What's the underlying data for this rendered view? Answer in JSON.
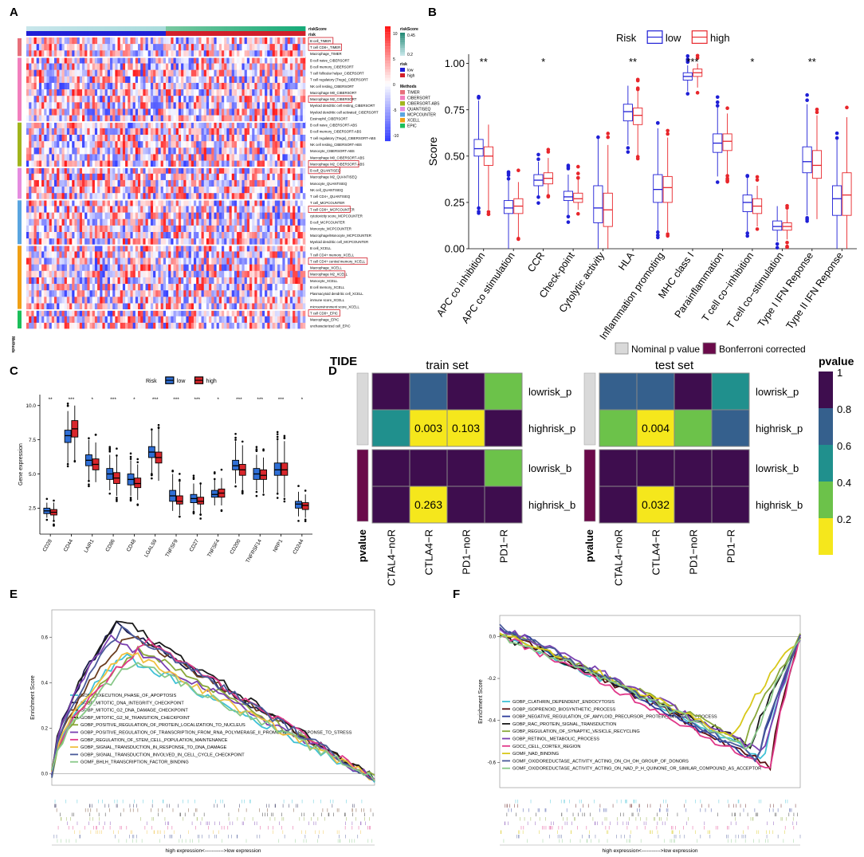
{
  "panels": {
    "A": "A",
    "B": "B",
    "C": "C",
    "D": "D",
    "E": "E",
    "F": "F"
  },
  "colors": {
    "low": "#1f1fd6",
    "high": "#e8262b",
    "c_low": "#2f6fd6",
    "c_high": "#d8262b",
    "timer": "#e76f7b",
    "cibersort": "#f27fbd",
    "cibersortabs": "#a1b41c",
    "quantiseq": "#e58ce0",
    "mcpcounter": "#5aa5e0",
    "xcell": "#f0a015",
    "epic": "#1bbf5a",
    "pv1": "#3e0d4e",
    "pv08": "#35608d",
    "pv06": "#20908d",
    "pv04": "#6cc24a",
    "pv02": "#f5e71c"
  },
  "panel_a": {
    "risk_score_label": "riskScore",
    "risk_label": "risk",
    "legend": {
      "scale_ticks": [
        "10",
        "5",
        "0",
        "-5",
        "-10"
      ],
      "riskscore_title": "riskScore",
      "riskscore_ticks": [
        "0.45",
        "0.2"
      ],
      "risk_title": "risk",
      "risk_items": [
        "low",
        "high"
      ],
      "methods_title": "Methods",
      "methods": [
        "TIMER",
        "CIBERSORT",
        "CIBERSORT-ABS",
        "QUANTISEQ",
        "MCPCOUNTER",
        "XCELL",
        "EPIC"
      ]
    },
    "methods_axis": "Methods",
    "rows": [
      "B cell_TIMER",
      "T cell CD8+_TIMER",
      "Macrophage_TIMER",
      "B cell naive_CIBERSORT",
      "B cell memory_CIBERSORT",
      "T cell follicular helper_CIBERSORT",
      "T cell regulatory (Tregs)_CIBERSORT",
      "NK cell resting_CIBERSORT",
      "Macrophage M0_CIBERSORT",
      "Macrophage M2_CIBERSORT",
      "Myeloid dendritic cell resting_CIBERSORT",
      "Myeloid dendritic cell activated_CIBERSORT",
      "Eosinophil_CIBERSORT",
      "B cell naive_CIBERSORT-ABS",
      "B cell memory_CIBERSORT-ABS",
      "T cell regulatory (Tregs)_CIBERSORT-ABS",
      "NK cell resting_CIBERSORT-ABS",
      "Monocyte_CIBERSORT-ABS",
      "Macrophage M0_CIBERSORT-ABS",
      "Macrophage M2_CIBERSORT-ABS",
      "B cell_QUANTISEQ",
      "Macrophage M2_QUANTISEQ",
      "Monocyte_QUANTISEQ",
      "NK cell_QUANTISEQ",
      "T cell CD4+_QUANTISEQ",
      "T cell_MCPCOUNTER",
      "T cell CD8+_MCPCOUNTER",
      "cytotoxicity score_MCPCOUNTER",
      "B cell_MCPCOUNTER",
      "Monocyte_MCPCOUNTER",
      "Macrophage/Monocyte_MCPCOUNTER",
      "Myeloid dendritic cell_MCPCOUNTER",
      "B cell_XCELL",
      "T cell CD4+ memory_XCELL",
      "T cell CD4+ central memory_XCELL",
      "Macrophage_XCELL",
      "Macrophage M2_XCELL",
      "Monocyte_XCELL",
      "B cell memory_XCELL",
      "Plasmacytoid dendritic cell_XCELL",
      "immune score_XCELL",
      "microenvironment score_XCELL",
      "T cell CD8+_EPIC",
      "Macrophage_EPIC",
      "uncharacterized cell_EPIC"
    ]
  },
  "chart_data": [
    {
      "panel": "B",
      "type": "box",
      "legend_title": "Risk",
      "legend_items": [
        "low",
        "high"
      ],
      "ylabel": "Score",
      "ylim": [
        0,
        1.05
      ],
      "yticks": [
        "0.00",
        "0.25",
        "0.50",
        "0.75",
        "1.00"
      ],
      "categories": [
        "APC co inhibition",
        "APC co stimulation",
        "CCR",
        "Check-point",
        "Cytolytic activity",
        "HLA",
        "Inflammation promoting",
        "MHC class I",
        "Parainflammation",
        "T cell co−inhibition",
        "T cell co−stimulation",
        "Type I IFN Reponse",
        "Type II IFN Reponse"
      ],
      "significance": [
        "**",
        "",
        "*",
        "",
        "",
        "**",
        "",
        "***",
        "",
        "*",
        "",
        "**",
        ""
      ],
      "series": [
        {
          "name": "low",
          "box": [
            [
              0.22,
              0.5,
              0.54,
              0.59,
              0.8
            ],
            [
              0.0,
              0.19,
              0.22,
              0.26,
              0.37
            ],
            [
              0.28,
              0.34,
              0.37,
              0.4,
              0.47
            ],
            [
              0.18,
              0.26,
              0.28,
              0.31,
              0.4
            ],
            [
              0.0,
              0.14,
              0.22,
              0.34,
              0.6
            ],
            [
              0.56,
              0.69,
              0.74,
              0.78,
              0.88
            ],
            [
              0.09,
              0.25,
              0.32,
              0.4,
              0.65
            ],
            [
              0.85,
              0.91,
              0.93,
              0.95,
              0.99
            ],
            [
              0.39,
              0.52,
              0.57,
              0.62,
              0.77
            ],
            [
              0.09,
              0.2,
              0.25,
              0.29,
              0.39
            ],
            [
              0.04,
              0.1,
              0.12,
              0.15,
              0.23
            ],
            [
              0.18,
              0.41,
              0.47,
              0.55,
              0.78
            ],
            [
              0.0,
              0.18,
              0.27,
              0.34,
              0.59
            ]
          ]
        },
        {
          "name": "high",
          "box": [
            [
              0.21,
              0.45,
              0.5,
              0.55,
              0.67
            ],
            [
              0.06,
              0.19,
              0.23,
              0.27,
              0.36
            ],
            [
              0.29,
              0.35,
              0.38,
              0.41,
              0.49
            ],
            [
              0.21,
              0.25,
              0.27,
              0.3,
              0.38
            ],
            [
              0.0,
              0.12,
              0.21,
              0.3,
              0.56
            ],
            [
              0.5,
              0.67,
              0.72,
              0.76,
              0.86
            ],
            [
              0.09,
              0.25,
              0.33,
              0.39,
              0.6
            ],
            [
              0.87,
              0.93,
              0.95,
              0.97,
              1.0
            ],
            [
              0.4,
              0.53,
              0.58,
              0.62,
              0.73
            ],
            [
              0.12,
              0.19,
              0.23,
              0.27,
              0.34
            ],
            [
              0.05,
              0.1,
              0.12,
              0.14,
              0.21
            ],
            [
              0.16,
              0.38,
              0.45,
              0.53,
              0.72
            ],
            [
              0.0,
              0.18,
              0.29,
              0.41,
              0.71
            ]
          ]
        }
      ]
    },
    {
      "panel": "C",
      "type": "box",
      "legend_title": "Risk",
      "legend_items": [
        "low",
        "high"
      ],
      "ylabel": "Gene expression",
      "ylim": [
        0.6,
        10.8
      ],
      "yticks": [
        "2.5",
        "5.0",
        "7.5",
        "10.0"
      ],
      "categories": [
        "CD28",
        "CD44",
        "LAIR1",
        "CD86",
        "CD48",
        "LGALS9",
        "TNFSF9",
        "CD27",
        "TNFSF4",
        "CD200",
        "TNFRSF14",
        "NRP1",
        "CD244"
      ],
      "significance": [
        "**",
        "***",
        "*",
        "***",
        "*",
        "***",
        "***",
        "***",
        "*",
        "***",
        "***",
        "***",
        "*"
      ],
      "series": [
        {
          "name": "low",
          "box": [
            [
              1.8,
              2.1,
              2.3,
              2.5,
              2.9
            ],
            [
              5.8,
              7.3,
              7.8,
              8.2,
              9.6
            ],
            [
              4.5,
              5.6,
              6.0,
              6.4,
              7.5
            ],
            [
              3.8,
              4.6,
              5.0,
              5.4,
              6.4
            ],
            [
              3.4,
              4.2,
              4.6,
              5.0,
              6.0
            ],
            [
              5.0,
              6.2,
              6.6,
              7.0,
              8.2
            ],
            [
              2.3,
              3.0,
              3.4,
              3.8,
              5.0
            ],
            [
              2.3,
              2.9,
              3.2,
              3.5,
              4.3
            ],
            [
              2.7,
              3.3,
              3.5,
              3.8,
              4.6
            ],
            [
              4.3,
              5.3,
              5.6,
              6.0,
              7.4
            ],
            [
              3.8,
              4.6,
              5.0,
              5.4,
              6.4
            ],
            [
              3.6,
              4.9,
              5.3,
              5.8,
              7.5
            ],
            [
              1.9,
              2.5,
              2.8,
              3.0,
              3.7
            ]
          ]
        },
        {
          "name": "high",
          "box": [
            [
              1.6,
              2.0,
              2.2,
              2.4,
              2.9
            ],
            [
              6.0,
              7.7,
              8.3,
              8.9,
              10.0
            ],
            [
              4.4,
              5.3,
              5.7,
              6.1,
              7.3
            ],
            [
              3.4,
              4.3,
              4.7,
              5.1,
              6.3
            ],
            [
              3.1,
              4.0,
              4.3,
              4.7,
              5.7
            ],
            [
              4.5,
              5.8,
              6.2,
              6.6,
              8.3
            ],
            [
              2.0,
              2.8,
              3.0,
              3.4,
              4.4
            ],
            [
              2.1,
              2.8,
              3.0,
              3.3,
              4.3
            ],
            [
              2.7,
              3.3,
              3.6,
              3.9,
              4.7
            ],
            [
              3.8,
              4.9,
              5.3,
              5.7,
              7.1
            ],
            [
              3.6,
              4.6,
              4.9,
              5.3,
              6.2
            ],
            [
              3.3,
              4.9,
              5.3,
              5.8,
              7.4
            ],
            [
              1.8,
              2.4,
              2.7,
              2.9,
              3.5
            ]
          ]
        }
      ]
    },
    {
      "panel": "D",
      "type": "heatmap",
      "title": "TIDE",
      "legend_items": [
        "Nominal p value",
        "Bonferroni corrected"
      ],
      "colorbar_title": "pvalue",
      "colorbar_ticks": [
        "1",
        "0.8",
        "0.6",
        "0.4",
        "0.2"
      ],
      "row_labels": [
        "lowrisk_p",
        "highrisk_p",
        "lowrisk_b",
        "highrisk_b"
      ],
      "col_labels": [
        "CTAL4−noR",
        "CTLA4−R",
        "PD1−noR",
        "PD1−R"
      ],
      "left_axis_label": "pvalue",
      "matrices": [
        {
          "name": "train set",
          "values": [
            [
              1.0,
              0.8,
              1.0,
              0.4
            ],
            [
              0.6,
              0.003,
              0.103,
              1.0
            ],
            [
              1.0,
              1.0,
              1.0,
              0.4
            ],
            [
              1.0,
              0.263,
              1.0,
              1.0
            ]
          ],
          "labels": [
            [
              "",
              "",
              "",
              ""
            ],
            [
              "",
              "0.003",
              "0.103",
              ""
            ],
            [
              "",
              "",
              "",
              ""
            ],
            [
              "",
              "0.263",
              "",
              ""
            ]
          ]
        },
        {
          "name": "test set",
          "values": [
            [
              0.8,
              0.8,
              1.0,
              0.6
            ],
            [
              0.4,
              0.004,
              0.4,
              0.8
            ],
            [
              1.0,
              1.0,
              1.0,
              1.0
            ],
            [
              1.0,
              0.032,
              1.0,
              1.0
            ]
          ],
          "labels": [
            [
              "",
              "",
              "",
              ""
            ],
            [
              "",
              "0.004",
              "",
              ""
            ],
            [
              "",
              "",
              "",
              ""
            ],
            [
              "",
              "0.032",
              "",
              ""
            ]
          ]
        }
      ]
    },
    {
      "panel": "E",
      "type": "line",
      "ylabel": "Enrichment Score",
      "yticks": [
        "0.6",
        "0.4",
        "0.2",
        "0.0"
      ],
      "ylim": [
        -0.05,
        0.72
      ],
      "xlabel": "high expression<----------->low expression",
      "series": [
        {
          "name": "GOBP_EXECUTION_PHASE_OF_APOPTOSIS",
          "color": "#3fc1d6",
          "peak": 0.52,
          "peak_pos": 0.22
        },
        {
          "name": "GOBP_MITOTIC_DNA_INTEGRITY_CHECKPOINT",
          "color": "#1a1a4a",
          "peak": 0.66,
          "peak_pos": 0.2
        },
        {
          "name": "GOBP_MITOTIC_G2_DNA_DAMAGE_CHECKPOINT",
          "color": "#6b3d1f",
          "peak": 0.62,
          "peak_pos": 0.24
        },
        {
          "name": "GOBP_MITOTIC_G2_M_TRANSITION_CHECKPOINT",
          "color": "#1a1a1a",
          "peak": 0.68,
          "peak_pos": 0.21
        },
        {
          "name": "GOBP_POSITIVE_REGULATION_OF_PROTEIN_LOCALIZATION_TO_NUCLEUS",
          "color": "#8aa83a",
          "peak": 0.55,
          "peak_pos": 0.27
        },
        {
          "name": "GOBP_POSITIVE_REGULATION_OF_TRANSCRIPTION_FROM_RNA_POLYMERASE_II_PROMOTER_IN_RESPONSE_TO_STRESS",
          "color": "#7a3fb0",
          "peak": 0.6,
          "peak_pos": 0.18
        },
        {
          "name": "GOBP_REGULATION_OF_STEM_CELL_POPULATION_MAINTENANCE",
          "color": "#e0388a",
          "peak": 0.58,
          "peak_pos": 0.3
        },
        {
          "name": "GOBP_SIGNAL_TRANSDUCTION_IN_RESPONSE_TO_DNA_DAMAGE",
          "color": "#f0c040",
          "peak": 0.54,
          "peak_pos": 0.23
        },
        {
          "name": "GOBP_SIGNAL_TRANSDUCTION_INVOLVED_IN_CELL_CYCLE_CHECKPOINT",
          "color": "#4a5a9a",
          "peak": 0.64,
          "peak_pos": 0.22
        },
        {
          "name": "GOMF_BHLH_TRANSCRIPTION_FACTOR_BINDING",
          "color": "#88c888",
          "peak": 0.5,
          "peak_pos": 0.26
        }
      ]
    },
    {
      "panel": "F",
      "type": "line",
      "ylabel": "Enrichment Score",
      "yticks": [
        "0.0",
        "-0.2",
        "-0.4",
        "-0.6"
      ],
      "ylim": [
        -0.72,
        0.1
      ],
      "xlabel": "high expression<----------->low expression",
      "series": [
        {
          "name": "GOBP_CLATHRIN_DEPENDENT_ENDOCYTOSIS",
          "color": "#3fc1d6",
          "trough": -0.58,
          "trough_pos": 0.88
        },
        {
          "name": "GOBP_ISOPRENOID_BIOSYNTHETIC_PROCESS",
          "color": "#5a1010",
          "trough": -0.62,
          "trough_pos": 0.9
        },
        {
          "name": "GOBP_NEGATIVE_REGULATION_OF_AMYLOID_PRECURSOR_PROTEIN_CATABOLIC_PROCESS",
          "color": "#2a3a9a",
          "trough": -0.6,
          "trough_pos": 0.86
        },
        {
          "name": "GOBP_RAC_PROTEIN_SIGNAL_TRANSDUCTION",
          "color": "#1a1a1a",
          "trough": -0.52,
          "trough_pos": 0.84
        },
        {
          "name": "GOBP_REGULATION_OF_SYNAPTIC_VESICLE_RECYCLING",
          "color": "#8aa83a",
          "trough": -0.5,
          "trough_pos": 0.82
        },
        {
          "name": "GOBP_RETINOL_METABOLIC_PROCESS",
          "color": "#7a3fb0",
          "trough": -0.56,
          "trough_pos": 0.88
        },
        {
          "name": "GOCC_CELL_CORTEX_REGION",
          "color": "#e0388a",
          "trough": -0.64,
          "trough_pos": 0.9
        },
        {
          "name": "GOMF_NAD_BINDING",
          "color": "#d8c81a",
          "trough": -0.48,
          "trough_pos": 0.78
        },
        {
          "name": "GOMF_OXIDOREDUCTASE_ACTIVITY_ACTING_ON_CH_OH_GROUP_OF_DONORS",
          "color": "#4a5a9a",
          "trough": -0.58,
          "trough_pos": 0.86
        },
        {
          "name": "GOMF_OXIDOREDUCTASE_ACTIVITY_ACTING_ON_NAD_P_H_QUINONE_OR_SIMILAR_COMPOUND_AS_ACCEPTOR",
          "color": "#88c888",
          "trough": -0.54,
          "trough_pos": 0.84
        }
      ]
    }
  ]
}
